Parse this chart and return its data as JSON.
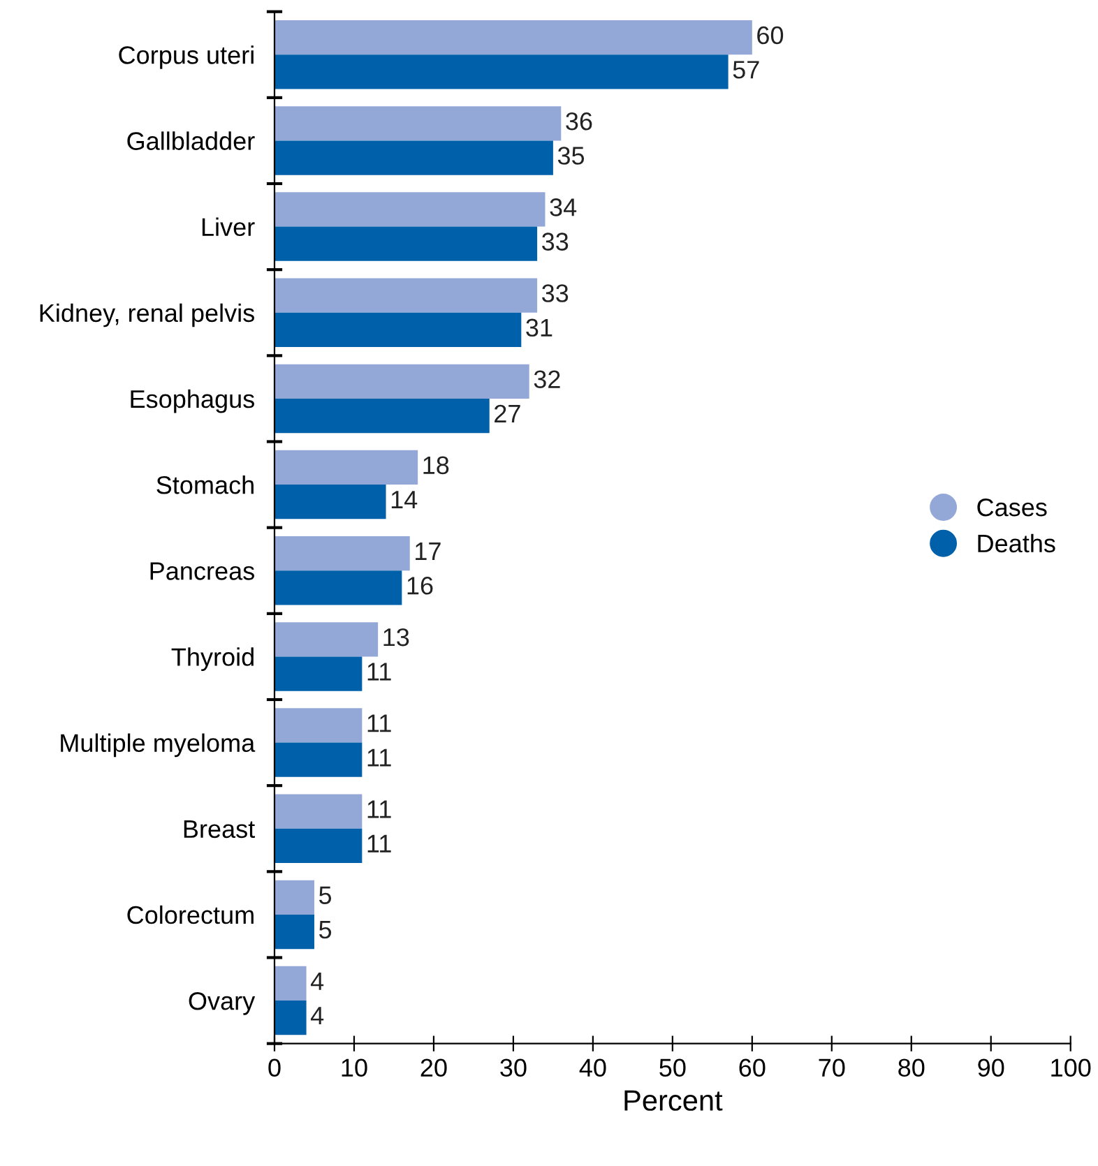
{
  "chart_data": {
    "type": "bar",
    "orientation": "horizontal",
    "xlabel": "Percent",
    "categories": [
      "Corpus uteri",
      "Gallbladder",
      "Liver",
      "Kidney, renal pelvis",
      "Esophagus",
      "Stomach",
      "Pancreas",
      "Thyroid",
      "Multiple myeloma",
      "Breast",
      "Colorectum",
      "Ovary"
    ],
    "series": [
      {
        "name": "Cases",
        "color": "#94a8d8",
        "values": [
          60,
          36,
          34,
          33,
          32,
          18,
          17,
          13,
          11,
          11,
          5,
          4
        ]
      },
      {
        "name": "Deaths",
        "color": "#0060aa",
        "values": [
          57,
          35,
          33,
          31,
          27,
          14,
          16,
          11,
          11,
          11,
          5,
          4
        ]
      }
    ],
    "xlim": [
      0,
      100
    ],
    "xticks": [
      0,
      10,
      20,
      30,
      40,
      50,
      60,
      70,
      80,
      90,
      100
    ],
    "data_labels": true,
    "grid": false,
    "legend": "right"
  }
}
